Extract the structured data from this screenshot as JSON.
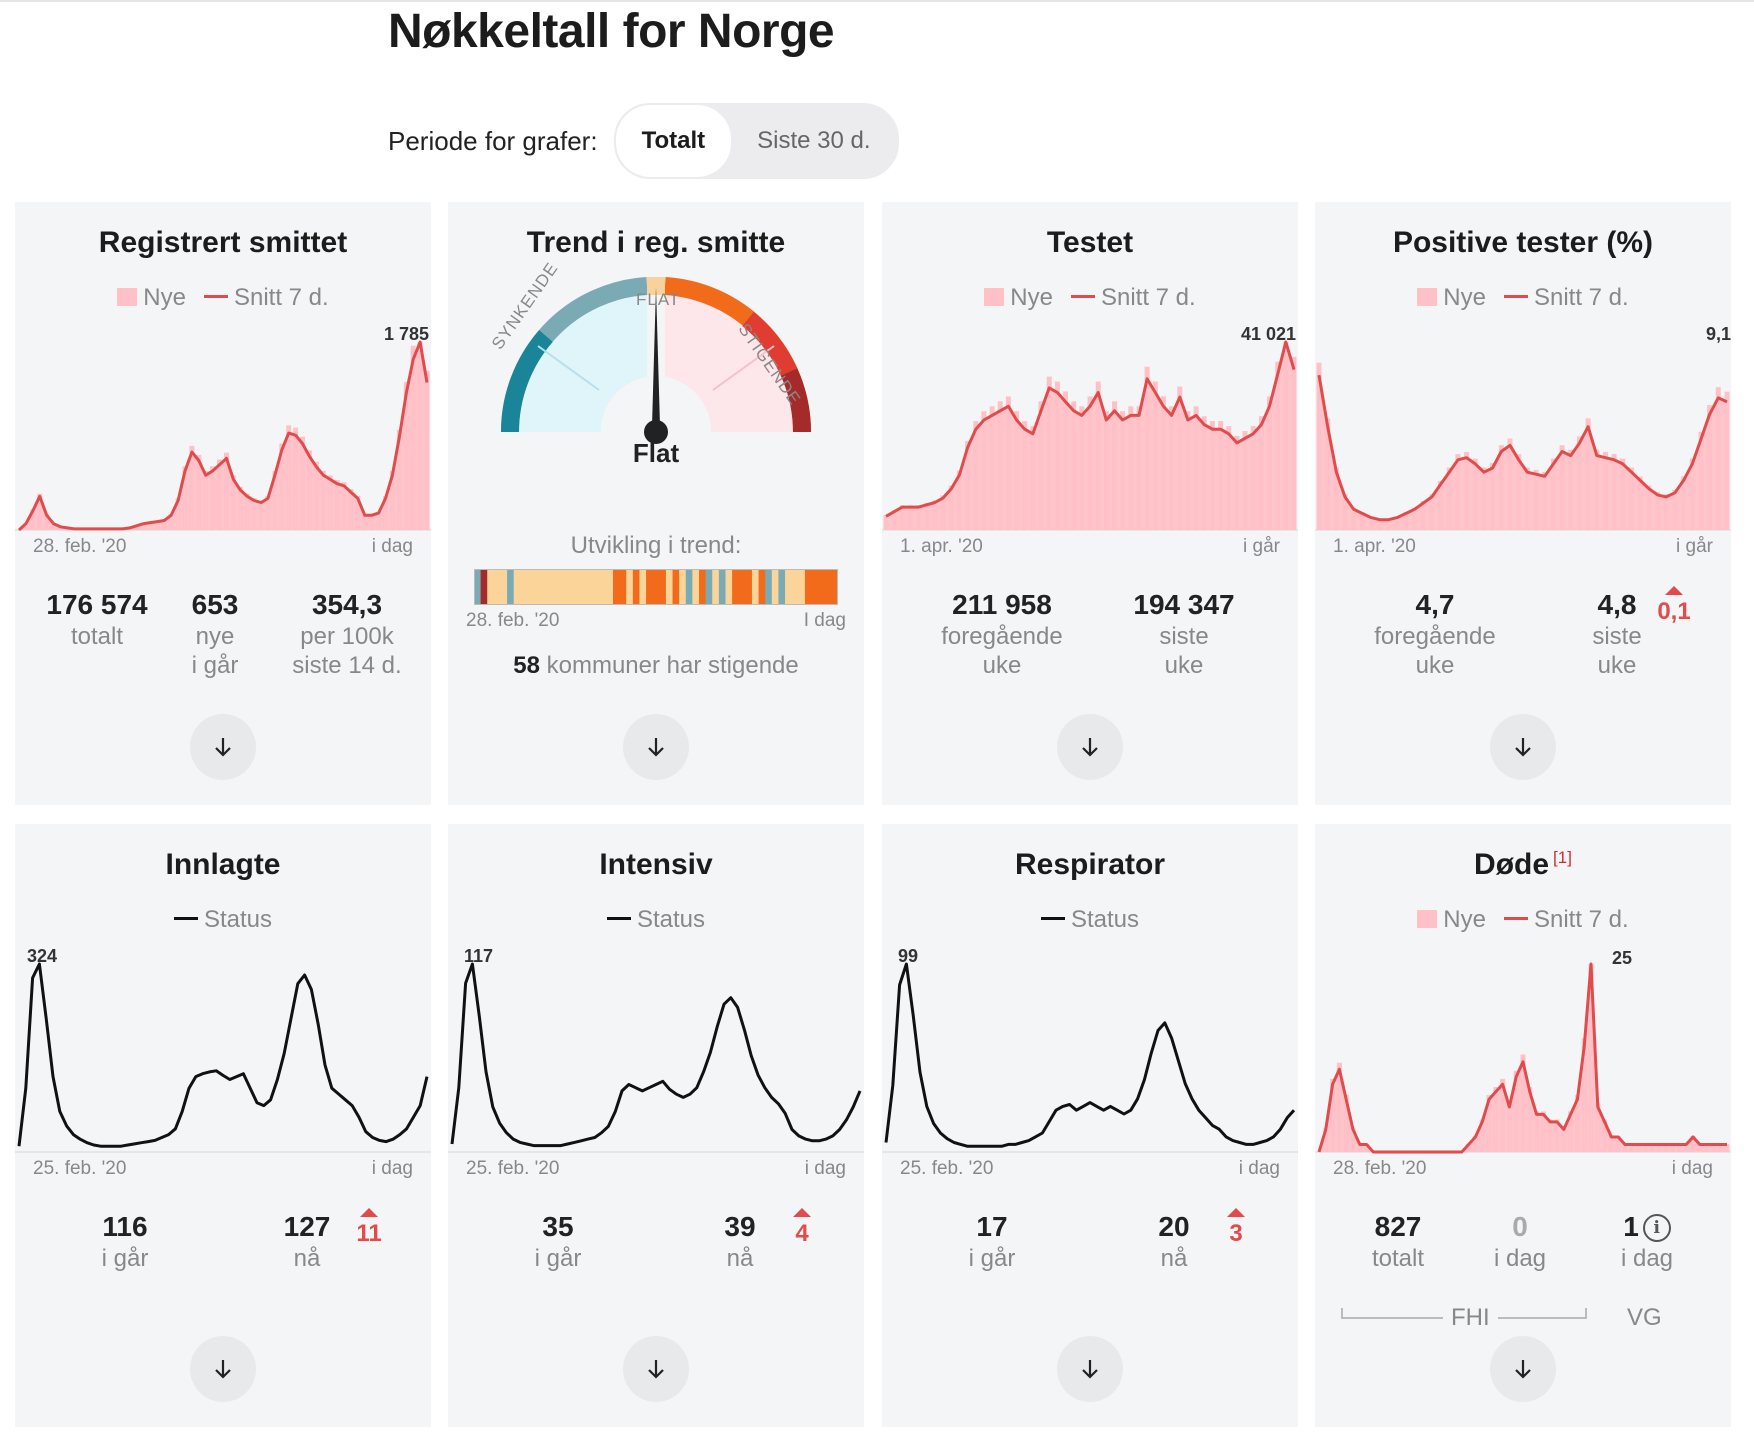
{
  "page": {
    "title": "Nøkkeltall for Norge"
  },
  "period": {
    "label": "Periode for grafer:",
    "options": [
      "Totalt",
      "Siste 30 d."
    ],
    "selected": "Totalt"
  },
  "legend": {
    "new": "Nye",
    "avg": "Snitt 7 d.",
    "status": "Status"
  },
  "colors": {
    "bar": "#ffc1c6",
    "avg_line": "#e24b4b",
    "status_line": "#111111",
    "card_bg": "#f4f5f6"
  },
  "icons": {
    "expand": "arrow-down-icon",
    "info": "info-icon",
    "up": "triangle-up-icon"
  },
  "cards": {
    "smittet": {
      "title": "Registrert smittet",
      "peak": "1 785",
      "axis_start": "28. feb. '20",
      "axis_end": "i dag",
      "stats": [
        {
          "num": "176 574",
          "lbl1": "totalt",
          "lbl2": ""
        },
        {
          "num": "653",
          "lbl1": "nye",
          "lbl2": "i går"
        },
        {
          "num": "354,3",
          "lbl1": "per 100k",
          "lbl2": "siste 14 d."
        }
      ]
    },
    "trend": {
      "title": "Trend i reg. smitte",
      "gauge": {
        "flat": "FLAT",
        "down": "SYNKENDE",
        "up": "STIGENDE",
        "value_label": "Flat"
      },
      "development_label": "Utvikling i trend:",
      "axis_start": "28. feb. '20",
      "axis_end": "I dag",
      "kommuner_count": "58",
      "kommuner_text": "kommuner har stigende"
    },
    "testet": {
      "title": "Testet",
      "peak": "41 021",
      "axis_start": "1. apr. '20",
      "axis_end": "i går",
      "stats": [
        {
          "num": "211 958",
          "lbl1": "foregående",
          "lbl2": "uke"
        },
        {
          "num": "194 347",
          "lbl1": "siste",
          "lbl2": "uke"
        }
      ]
    },
    "positive": {
      "title": "Positive tester (%)",
      "peak": "9,1",
      "axis_start": "1. apr. '20",
      "axis_end": "i går",
      "stats": [
        {
          "num": "4,7",
          "lbl1": "foregående",
          "lbl2": "uke"
        },
        {
          "num": "4,8",
          "lbl1": "siste",
          "lbl2": "uke"
        }
      ],
      "delta": "0,1"
    },
    "innlagte": {
      "title": "Innlagte",
      "peak": "324",
      "axis_start": "25. feb. '20",
      "axis_end": "i dag",
      "stats": [
        {
          "num": "116",
          "lbl1": "i går"
        },
        {
          "num": "127",
          "lbl1": "nå"
        }
      ],
      "delta": "11"
    },
    "intensiv": {
      "title": "Intensiv",
      "peak": "117",
      "axis_start": "25. feb. '20",
      "axis_end": "i dag",
      "stats": [
        {
          "num": "35",
          "lbl1": "i går"
        },
        {
          "num": "39",
          "lbl1": "nå"
        }
      ],
      "delta": "4"
    },
    "respirator": {
      "title": "Respirator",
      "peak": "99",
      "axis_start": "25. feb. '20",
      "axis_end": "i dag",
      "stats": [
        {
          "num": "17",
          "lbl1": "i går"
        },
        {
          "num": "20",
          "lbl1": "nå"
        }
      ],
      "delta": "3"
    },
    "dode": {
      "title": "Døde",
      "footnote": "[1]",
      "peak": "25",
      "axis_start": "28. feb. '20",
      "axis_end": "i dag",
      "stats": [
        {
          "num": "827",
          "lbl1": "totalt"
        },
        {
          "num": "0",
          "lbl1": "i dag"
        },
        {
          "num": "1",
          "lbl1": "i dag"
        }
      ],
      "source_fhi": "FHI",
      "source_vg": "VG"
    }
  },
  "chart_data": [
    {
      "type": "area",
      "name": "smittet",
      "y_max": 1785,
      "values": [
        0,
        60,
        180,
        320,
        140,
        60,
        30,
        20,
        10,
        10,
        10,
        10,
        10,
        10,
        10,
        10,
        20,
        40,
        60,
        70,
        80,
        90,
        140,
        280,
        560,
        740,
        660,
        520,
        560,
        620,
        680,
        480,
        380,
        320,
        280,
        260,
        300,
        520,
        760,
        920,
        900,
        820,
        700,
        600,
        520,
        480,
        440,
        420,
        360,
        300,
        140,
        140,
        160,
        300,
        520,
        880,
        1300,
        1620,
        1785,
        1400
      ]
    },
    {
      "type": "area",
      "name": "testet",
      "y_max": 41021,
      "values": [
        3000,
        4000,
        5000,
        5000,
        5000,
        5500,
        6000,
        7000,
        9000,
        12000,
        18000,
        22000,
        24000,
        25000,
        26000,
        27000,
        24000,
        22000,
        21000,
        26000,
        31000,
        30000,
        28000,
        26000,
        25000,
        27000,
        30000,
        24000,
        26000,
        24000,
        25000,
        25000,
        33000,
        30000,
        27000,
        25000,
        29000,
        24000,
        25000,
        23000,
        22000,
        22000,
        21000,
        19000,
        20000,
        21000,
        23000,
        27000,
        34000,
        41021,
        35000
      ]
    },
    {
      "type": "area",
      "name": "positive",
      "y_max": 9.1,
      "values": [
        7.5,
        5.0,
        2.8,
        1.6,
        1.0,
        0.8,
        0.6,
        0.5,
        0.5,
        0.6,
        0.8,
        1.0,
        1.3,
        1.6,
        2.2,
        2.8,
        3.4,
        3.5,
        3.2,
        2.8,
        3.0,
        3.8,
        4.1,
        3.4,
        2.8,
        2.7,
        2.6,
        3.2,
        3.8,
        3.6,
        4.2,
        5.0,
        3.6,
        3.5,
        3.4,
        3.2,
        2.8,
        2.4,
        2.0,
        1.7,
        1.6,
        1.8,
        2.4,
        3.2,
        4.4,
        5.6,
        6.4,
        6.2
      ]
    },
    {
      "type": "line",
      "name": "innlagte",
      "y_max": 324,
      "values": [
        10,
        110,
        300,
        324,
        230,
        130,
        70,
        45,
        30,
        22,
        16,
        12,
        10,
        10,
        10,
        10,
        12,
        14,
        16,
        18,
        20,
        25,
        30,
        40,
        70,
        110,
        130,
        135,
        138,
        140,
        132,
        125,
        130,
        135,
        110,
        85,
        80,
        90,
        125,
        170,
        230,
        290,
        305,
        280,
        220,
        150,
        110,
        100,
        90,
        80,
        60,
        35,
        25,
        20,
        18,
        22,
        30,
        40,
        60,
        80,
        130
      ]
    },
    {
      "type": "line",
      "name": "intensiv",
      "y_max": 117,
      "values": [
        5,
        40,
        105,
        117,
        85,
        50,
        28,
        18,
        12,
        8,
        6,
        5,
        4,
        4,
        4,
        4,
        4,
        5,
        6,
        7,
        8,
        9,
        12,
        16,
        25,
        38,
        42,
        40,
        38,
        40,
        42,
        44,
        39,
        36,
        34,
        36,
        40,
        50,
        62,
        78,
        92,
        96,
        90,
        76,
        60,
        48,
        40,
        34,
        30,
        24,
        14,
        10,
        8,
        7,
        7,
        8,
        10,
        14,
        20,
        28,
        38
      ]
    },
    {
      "type": "line",
      "name": "respirator",
      "y_max": 99,
      "values": [
        5,
        35,
        88,
        99,
        72,
        42,
        24,
        15,
        10,
        7,
        5,
        4,
        3,
        3,
        3,
        3,
        3,
        3,
        4,
        4,
        5,
        6,
        8,
        10,
        16,
        22,
        24,
        25,
        22,
        24,
        26,
        24,
        22,
        24,
        22,
        20,
        22,
        28,
        38,
        52,
        64,
        68,
        60,
        48,
        36,
        28,
        22,
        18,
        14,
        12,
        8,
        6,
        5,
        4,
        4,
        5,
        6,
        8,
        12,
        18,
        22
      ]
    },
    {
      "type": "area",
      "name": "dode",
      "y_max": 25,
      "values": [
        0,
        3,
        9,
        11,
        7,
        3,
        1,
        1,
        0,
        0,
        0,
        0,
        0,
        0,
        0,
        0,
        0,
        0,
        0,
        0,
        0,
        0,
        1,
        2,
        4,
        7,
        8,
        9,
        6,
        10,
        12,
        8,
        5,
        5,
        4,
        4,
        3,
        5,
        7,
        14,
        25,
        6,
        4,
        2,
        2,
        1,
        1,
        1,
        1,
        1,
        1,
        1,
        1,
        1,
        1,
        2,
        1,
        1,
        1,
        1,
        1
      ]
    },
    {
      "type": "table",
      "name": "trend-development",
      "values": [
        "synk",
        "mixed",
        "ok",
        "ok",
        "ok",
        "synk",
        "ok",
        "ok",
        "ok",
        "ok",
        "ok",
        "ok",
        "ok",
        "ok",
        "ok",
        "ok",
        "ok",
        "ok",
        "ok",
        "ok",
        "ok",
        "st",
        "st",
        "ok",
        "st",
        "ok",
        "st",
        "st",
        "st",
        "ok",
        "st",
        "ok",
        "synk",
        "ok",
        "st",
        "synk",
        "ok",
        "synk",
        "ok",
        "st",
        "st",
        "st",
        "ok",
        "st",
        "synk",
        "ok",
        "synk",
        "ok",
        "ok",
        "ok",
        "st",
        "st",
        "st",
        "st",
        "st"
      ]
    }
  ]
}
